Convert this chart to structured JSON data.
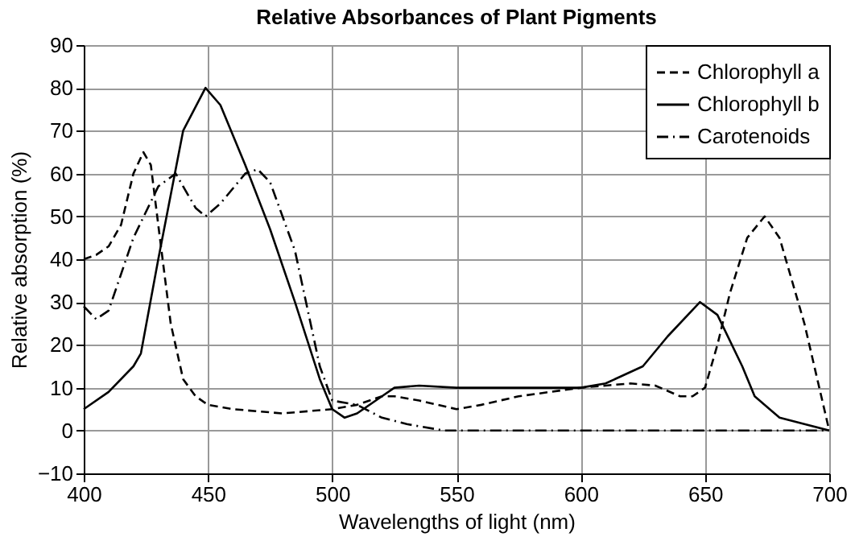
{
  "chart_data": {
    "type": "line",
    "title": "Relative Absorbances of Plant Pigments",
    "xlabel": "Wavelengths of light (nm)",
    "ylabel": "Relative absorption (%)",
    "xlim": [
      400,
      700
    ],
    "xticks": [
      400,
      450,
      500,
      550,
      600,
      650,
      700
    ],
    "ylim": [
      -10,
      90
    ],
    "yticks": [
      -10,
      0,
      10,
      20,
      30,
      40,
      50,
      60,
      70,
      80,
      90
    ],
    "grid": true,
    "legend": "top right",
    "marker": "none",
    "series": [
      {
        "name": "Chlorophyll a",
        "color": "#000000",
        "line_style": "dashed",
        "x": [
          400,
          405,
          410,
          415,
          420,
          424,
          427,
          430,
          435,
          440,
          445,
          450,
          460,
          470,
          480,
          490,
          500,
          510,
          520,
          525,
          535,
          550,
          560,
          575,
          600,
          620,
          630,
          640,
          645,
          650,
          655,
          660,
          667,
          674,
          680,
          690,
          700
        ],
        "values": [
          40,
          41,
          43,
          48,
          60,
          65,
          62,
          48,
          25,
          12,
          8,
          6,
          5,
          4.5,
          4,
          4.5,
          5,
          6,
          8,
          8,
          7,
          5,
          6,
          8,
          10,
          11,
          10.5,
          8,
          8,
          10,
          20,
          32,
          45,
          50,
          45,
          25,
          0
        ]
      },
      {
        "name": "Chlorophyll b",
        "color": "#000000",
        "line_style": "solid",
        "x": [
          400,
          410,
          420,
          423,
          430,
          440,
          449,
          455,
          465,
          475,
          485,
          495,
          500,
          505,
          510,
          520,
          525,
          535,
          550,
          600,
          610,
          625,
          635,
          648,
          655,
          665,
          670,
          680,
          690,
          700
        ],
        "values": [
          5,
          9,
          15,
          18,
          40,
          70,
          80,
          76,
          62,
          47,
          30,
          12,
          5,
          3,
          4,
          8,
          10,
          10.5,
          10,
          10,
          11,
          15,
          22,
          30,
          27,
          15,
          8,
          3,
          1.5,
          0
        ]
      },
      {
        "name": "Carotenoids",
        "color": "#000000",
        "line_style": "dashdot",
        "x": [
          400,
          405,
          410,
          420,
          430,
          437,
          445,
          449,
          455,
          465,
          470,
          475,
          485,
          495,
          500,
          510,
          520,
          530,
          545,
          600,
          650,
          700
        ],
        "values": [
          29,
          26,
          28,
          45,
          57,
          60,
          52,
          50,
          53,
          60,
          61,
          58,
          42,
          15,
          7,
          6,
          3,
          1.5,
          0,
          0,
          0,
          0
        ]
      }
    ]
  }
}
